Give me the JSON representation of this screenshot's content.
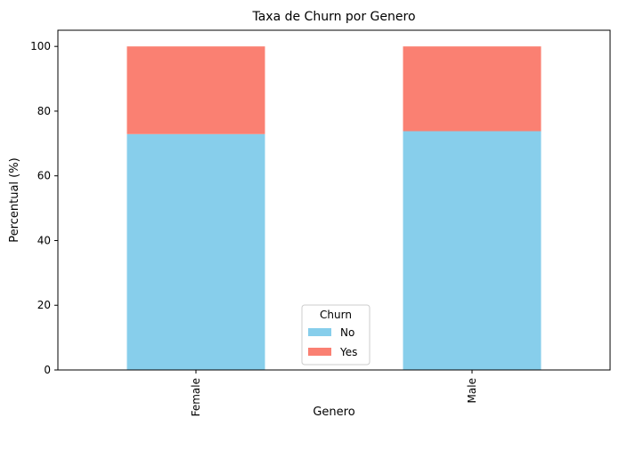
{
  "chart_data": {
    "type": "bar",
    "stacked": true,
    "title": "Taxa de Churn por Genero",
    "xlabel": "Genero",
    "ylabel": "Percentual (%)",
    "categories": [
      "Female",
      "Male"
    ],
    "series": [
      {
        "name": "No",
        "color": "#87CEEB",
        "values": [
          72.9,
          73.8
        ]
      },
      {
        "name": "Yes",
        "color": "#FA8072",
        "values": [
          27.1,
          26.2
        ]
      }
    ],
    "ylim": [
      0,
      105
    ],
    "yticks": [
      "0",
      "20",
      "40",
      "60",
      "80",
      "100"
    ],
    "legend": {
      "title": "Churn",
      "placement": "lower-center"
    },
    "grid": false
  }
}
